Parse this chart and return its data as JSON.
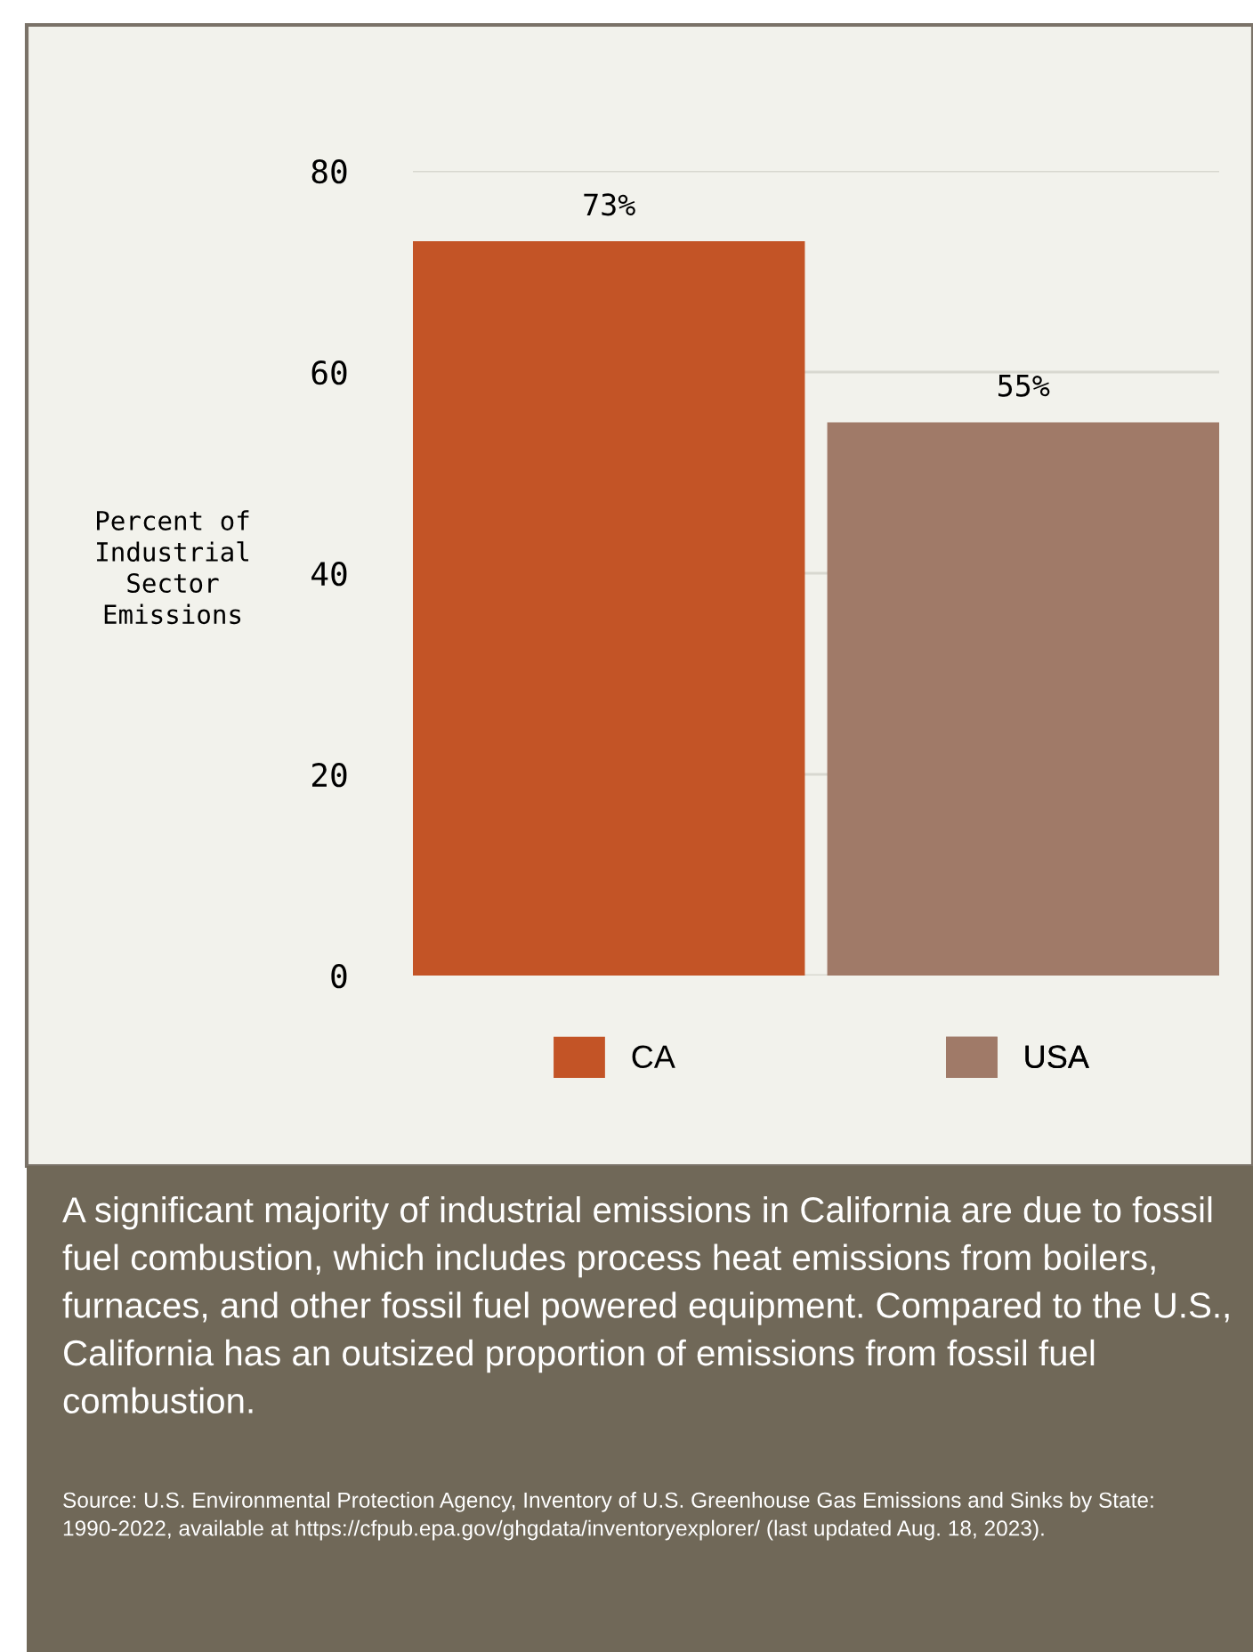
{
  "chart_data": {
    "type": "bar",
    "ylabel": "Percent of\nIndustrial\nSector\nEmissions",
    "categories": [
      null,
      null
    ],
    "series": [
      {
        "name": "CA",
        "color": "#c35426",
        "values": [
          73,
          null
        ],
        "value_labels": [
          "73%",
          null
        ]
      },
      {
        "name": "USA",
        "color": "#a07a68",
        "values": [
          null,
          55
        ],
        "value_labels": [
          null,
          "55%"
        ]
      }
    ],
    "ylim": [
      0,
      80
    ],
    "yticks": [
      0,
      20,
      40,
      60,
      80
    ],
    "grid": "y",
    "legend": "bottom",
    "annotations": [
      "A significant majority of industrial emissions in California are due to fossil fuel combustion, which includes process heat emissions from boilers, furnaces, and other fossil fuel powered equipment. Compared to the U.S., California has an outsized proportion of emissions from fossil fuel combustion.",
      "Source: U.S. Environmental Protection Agency, Inventory of U.S. Greenhouse Gas Emissions and Sinks by State: 1990-2022, available at https://cfpub.epa.gov/ghgdata/inventoryexplorer/ (last updated Aug. 18, 2023)."
    ]
  }
}
